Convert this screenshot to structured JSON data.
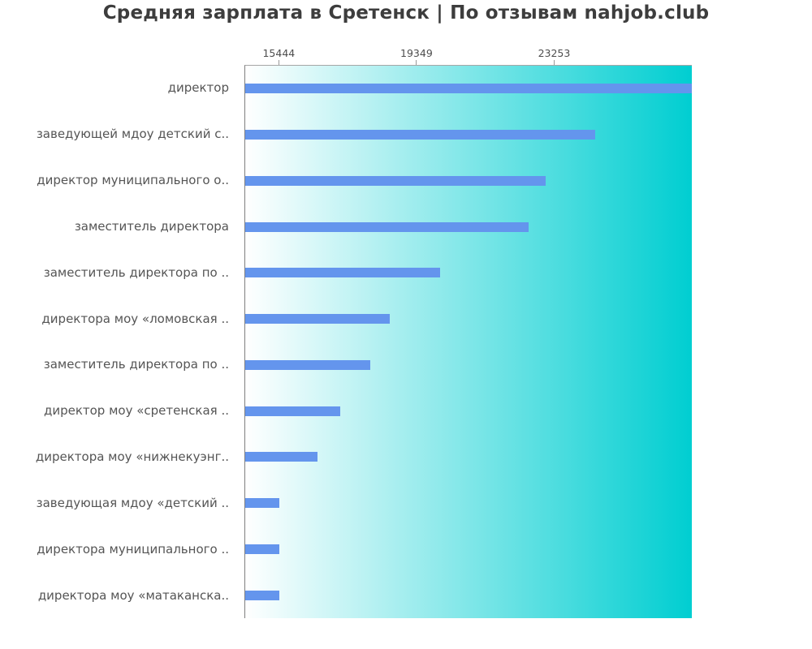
{
  "title": "Средняя зарплата в Сретенск | По отзывам nahjob.club",
  "colors": {
    "bar": "#6495ED",
    "gradient_left": "#ffffff",
    "gradient_right": "#00CED1",
    "axis_top_line": "#a6a6a6",
    "axis_left_line": "#7f7f7f",
    "title_text": "#3d3d3d",
    "category_text": "#555555",
    "tick_text": "#4d4d4d"
  },
  "chart_data": {
    "type": "bar",
    "orientation": "horizontal",
    "title": "Средняя зарплата в Сретенск | По отзывам nahjob.club",
    "categories": [
      "директор",
      "заведующей мдоу детский с..",
      "директор муниципального о..",
      "заместитель директора",
      "заместитель директора по ..",
      "директора моу «ломовская ..",
      "заместитель директора по ..",
      "директор моу «сретенская ..",
      "директора моу «нижнекуэнг..",
      "заведующая мдоу «детский ..",
      "директора муниципального ..",
      "директора моу «матаканска.."
    ],
    "values": [
      27158,
      24420,
      23010,
      22525,
      20000,
      18580,
      18020,
      17165,
      16520,
      15444,
      15444,
      15444
    ],
    "xticks": [
      15444,
      19349,
      23253
    ],
    "xlim": [
      14468,
      27158
    ],
    "xlabel": "",
    "ylabel": "",
    "grid": false,
    "legend": null,
    "xaxis_position": "top",
    "background": "horizontal gradient white to turquoise"
  }
}
